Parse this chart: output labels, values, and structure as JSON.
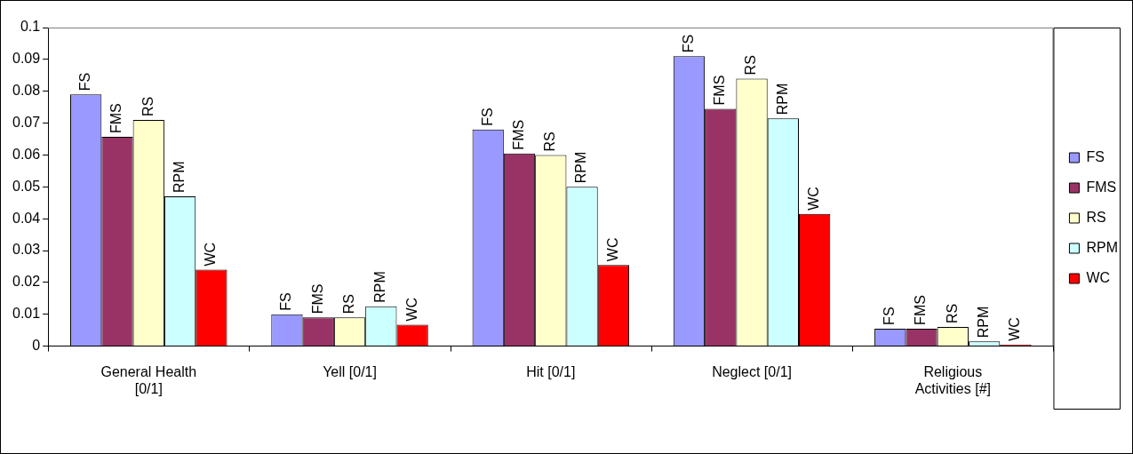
{
  "chart_data": {
    "type": "bar",
    "categories": [
      "General Health [0/1]",
      "Yell [0/1]",
      "Hit [0/1]",
      "Neglect [0/1]",
      "Religious Activities [#]"
    ],
    "series": [
      {
        "name": "FS",
        "color": "#9999ff",
        "values": [
          0.079,
          0.01,
          0.068,
          0.091,
          0.0055
        ],
        "value_labels": [
          "FS",
          "FS",
          "FS",
          "FS",
          "FS"
        ]
      },
      {
        "name": "FMS",
        "color": "#993366",
        "values": [
          0.0657,
          0.009,
          0.0605,
          0.0745,
          0.0055
        ],
        "value_labels": [
          "FMS",
          "FMS",
          "FMS",
          "FMS",
          "FMS"
        ]
      },
      {
        "name": "RS",
        "color": "#ffffcc",
        "values": [
          0.071,
          0.009,
          0.06,
          0.084,
          0.006
        ],
        "value_labels": [
          "RS",
          "RS",
          "RS",
          "RS",
          "RS"
        ]
      },
      {
        "name": "RPM",
        "color": "#ccffff",
        "values": [
          0.047,
          0.0125,
          0.05,
          0.0715,
          0.0015
        ],
        "value_labels": [
          "RPM",
          "RPM",
          "RPM",
          "RPM",
          "RPM"
        ]
      },
      {
        "name": "WC",
        "color": "#ff0000",
        "values": [
          0.024,
          0.0067,
          0.0255,
          0.0415,
          0.0005
        ],
        "value_labels": [
          "WC",
          "WC",
          "WC",
          "WC",
          "WC"
        ]
      }
    ],
    "ylim": [
      0,
      0.1
    ],
    "yticks": [
      0,
      0.01,
      0.02,
      0.03,
      0.04,
      0.05,
      0.06,
      0.07,
      0.08,
      0.09,
      0.1
    ],
    "grid": false,
    "legend": "right"
  }
}
